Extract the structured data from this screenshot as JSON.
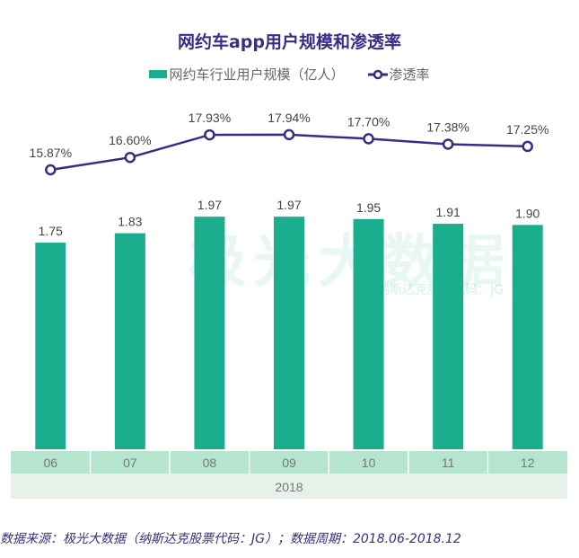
{
  "chart_data": {
    "type": "bar+line",
    "title": "网约车app用户规模和渗透率",
    "categories": [
      "06",
      "07",
      "08",
      "09",
      "10",
      "11",
      "12"
    ],
    "group_label": "2018",
    "series": [
      {
        "name": "网约车行业用户规模（亿人）",
        "type": "bar",
        "values": [
          1.75,
          1.83,
          1.97,
          1.97,
          1.95,
          1.91,
          1.9
        ],
        "labels": [
          "1.75",
          "1.83",
          "1.97",
          "1.97",
          "1.95",
          "1.91",
          "1.90"
        ],
        "color": "#1aae8f"
      },
      {
        "name": "渗透率",
        "type": "line",
        "values": [
          15.87,
          16.6,
          17.93,
          17.94,
          17.7,
          17.38,
          17.25
        ],
        "labels": [
          "15.87%",
          "16.60%",
          "17.93%",
          "17.94%",
          "17.70%",
          "17.38%",
          "17.25%"
        ],
        "color": "#3d2b83"
      }
    ],
    "legend_position": "top",
    "grid": false
  },
  "watermark": {
    "logo": "极光大数据",
    "sub": "纳斯达克股票代码：JG"
  },
  "footnote": "数据来源：极光大数据（纳斯达克股票代码：JG）；数据周期：2018.06-2018.12"
}
